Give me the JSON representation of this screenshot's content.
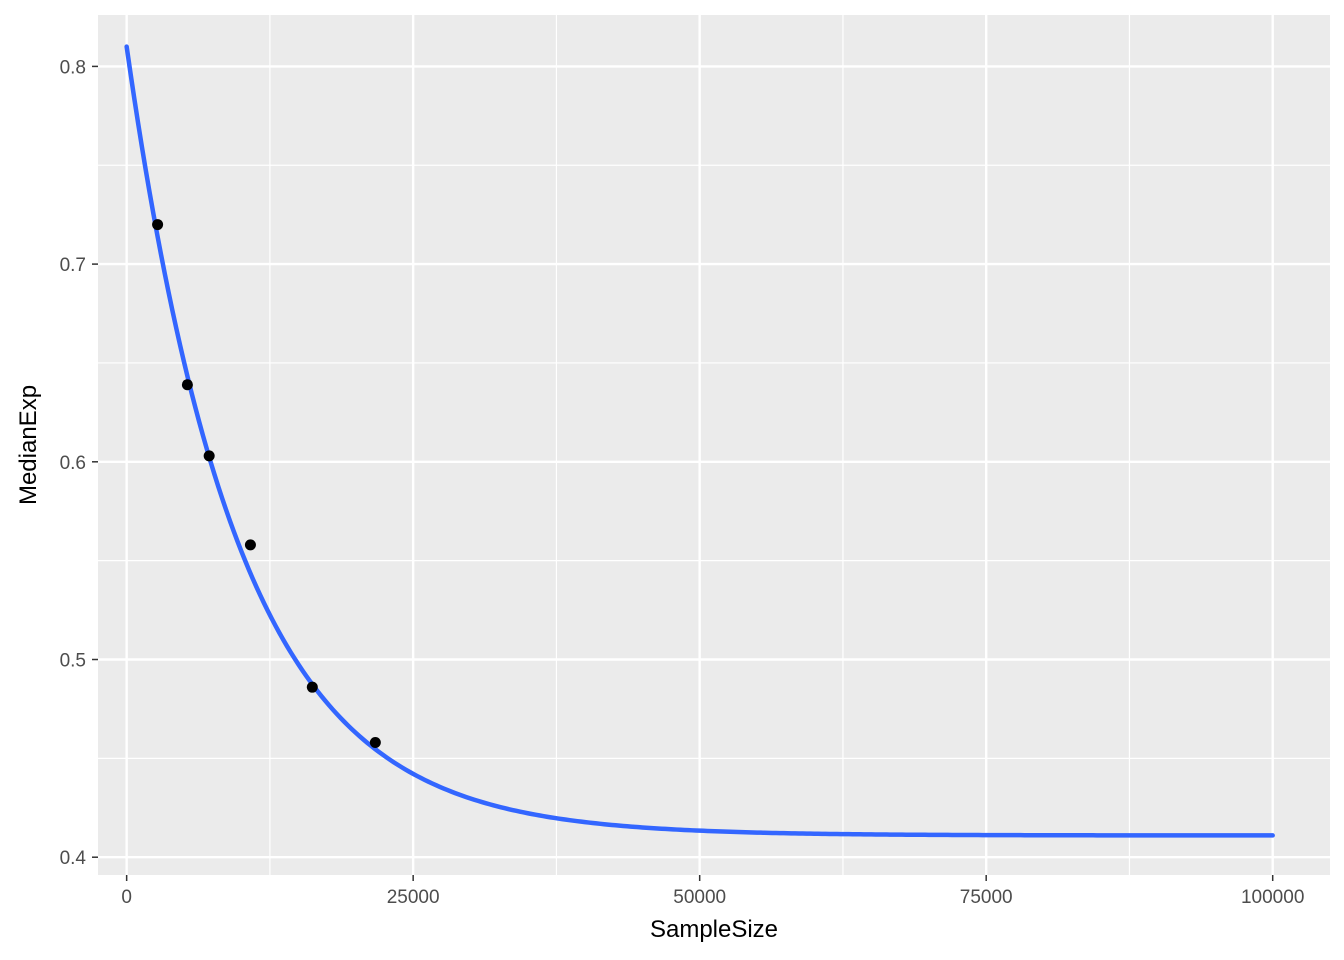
{
  "chart_data": {
    "type": "scatter",
    "title": "",
    "xlabel": "SampleSize",
    "ylabel": "MedianExp",
    "xlim": [
      -2500,
      105000
    ],
    "ylim": [
      0.391,
      0.826
    ],
    "x_ticks": [
      0,
      25000,
      50000,
      75000,
      100000
    ],
    "x_tick_labels": [
      "0",
      "25000",
      "50000",
      "75000",
      "100000"
    ],
    "x_minor_ticks": [
      12500,
      37500,
      62500,
      87500
    ],
    "y_ticks": [
      0.4,
      0.5,
      0.6,
      0.7,
      0.8
    ],
    "y_tick_labels": [
      "0.4",
      "0.5",
      "0.6",
      "0.7",
      "0.8"
    ],
    "y_minor_ticks": [
      0.45,
      0.55,
      0.65,
      0.75
    ],
    "grid": true,
    "legend": "none",
    "colors": {
      "panel": "#ebebeb",
      "grid": "#ffffff",
      "points": "#000000",
      "fit_line": "#3366ff"
    },
    "series": [
      {
        "kind": "points",
        "x": [
          2700,
          5300,
          7200,
          10800,
          16200,
          21700
        ],
        "y": [
          0.72,
          0.639,
          0.603,
          0.558,
          0.486,
          0.458
        ]
      },
      {
        "kind": "fitted_curve",
        "model": "exponential decay",
        "x_range": [
          0,
          100000
        ],
        "asymptote": 0.411,
        "amplitude": 0.399,
        "rate": 0.000102
      }
    ]
  }
}
